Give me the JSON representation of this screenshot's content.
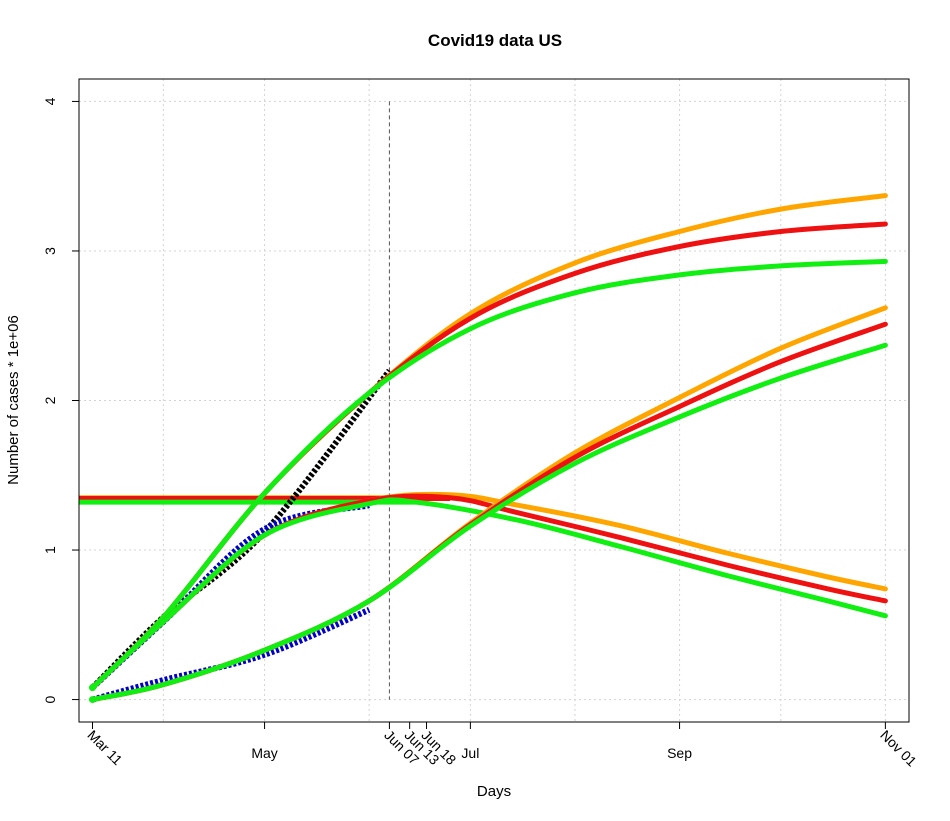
{
  "chart_data": {
    "type": "line",
    "title": "Covid19 data US",
    "xlabel": "Days",
    "ylabel": "Number of cases * 1e+06",
    "x_axis": "date",
    "xlim": [
      "2020-03-07",
      "2020-11-08"
    ],
    "ylim": [
      -0.15,
      4.15
    ],
    "grid": true,
    "x_ticks": [
      {
        "date": "2020-03-11",
        "label": "Mar 11",
        "rotated": true
      },
      {
        "date": "2020-05-01",
        "label": "May",
        "rotated": false
      },
      {
        "date": "2020-06-07",
        "label": "Jun 07",
        "rotated": true
      },
      {
        "date": "2020-06-13",
        "label": "Jun 13",
        "rotated": true
      },
      {
        "date": "2020-06-18",
        "label": "Jun 18",
        "rotated": true
      },
      {
        "date": "2020-07-01",
        "label": "Jul",
        "rotated": false
      },
      {
        "date": "2020-09-01",
        "label": "Sep",
        "rotated": false
      },
      {
        "date": "2020-11-01",
        "label": "Nov 01",
        "rotated": true
      }
    ],
    "y_ticks": [
      0,
      1,
      2,
      3,
      4
    ],
    "y_tick_labels": [
      "0",
      "1",
      "2",
      "3",
      "4"
    ],
    "vline": {
      "date": "2020-06-07",
      "y_top": 4
    },
    "observed": [
      {
        "color": "#000000",
        "points": [
          [
            "2020-03-11",
            0.08
          ],
          [
            "2020-04-01",
            0.55
          ],
          [
            "2020-05-01",
            1.12
          ],
          [
            "2020-06-07",
            2.2
          ]
        ]
      },
      {
        "color": "#0000cc",
        "points": [
          [
            "2020-03-11",
            0.08
          ],
          [
            "2020-04-01",
            0.52
          ],
          [
            "2020-05-01",
            1.14
          ],
          [
            "2020-06-01",
            1.3
          ]
        ]
      },
      {
        "color": "#0000cc",
        "points": [
          [
            "2020-03-11",
            0.0
          ],
          [
            "2020-04-01",
            0.13
          ],
          [
            "2020-05-01",
            0.3
          ],
          [
            "2020-06-01",
            0.6
          ]
        ]
      }
    ],
    "series": [
      {
        "color": "#ffa500",
        "values": [
          [
            "2020-03-11",
            0.08
          ],
          [
            "2020-04-01",
            0.55
          ],
          [
            "2020-05-01",
            1.38
          ],
          [
            "2020-06-01",
            2.05
          ],
          [
            "2020-07-01",
            2.58
          ],
          [
            "2020-08-01",
            2.92
          ],
          [
            "2020-09-01",
            3.13
          ],
          [
            "2020-10-01",
            3.28
          ],
          [
            "2020-11-01",
            3.37
          ]
        ]
      },
      {
        "color": "#ee1111",
        "values": [
          [
            "2020-03-11",
            0.08
          ],
          [
            "2020-04-01",
            0.55
          ],
          [
            "2020-05-01",
            1.38
          ],
          [
            "2020-06-01",
            2.05
          ],
          [
            "2020-07-01",
            2.55
          ],
          [
            "2020-08-01",
            2.85
          ],
          [
            "2020-09-01",
            3.03
          ],
          [
            "2020-10-01",
            3.13
          ],
          [
            "2020-11-01",
            3.18
          ]
        ]
      },
      {
        "color": "#11ee11",
        "values": [
          [
            "2020-03-11",
            0.08
          ],
          [
            "2020-04-01",
            0.55
          ],
          [
            "2020-05-01",
            1.38
          ],
          [
            "2020-06-01",
            2.05
          ],
          [
            "2020-07-01",
            2.48
          ],
          [
            "2020-08-01",
            2.72
          ],
          [
            "2020-09-01",
            2.84
          ],
          [
            "2020-10-01",
            2.9
          ],
          [
            "2020-11-01",
            2.93
          ]
        ]
      },
      {
        "color": "#ffa500",
        "values": [
          [
            "2020-03-11",
            0.08
          ],
          [
            "2020-04-01",
            0.52
          ],
          [
            "2020-05-01",
            1.1
          ],
          [
            "2020-06-01",
            1.33
          ],
          [
            "2020-06-25",
            1.37
          ],
          [
            "2020-07-15",
            1.3
          ],
          [
            "2020-08-15",
            1.16
          ],
          [
            "2020-09-15",
            0.98
          ],
          [
            "2020-10-15",
            0.82
          ],
          [
            "2020-11-01",
            0.74
          ]
        ]
      },
      {
        "color": "#ee1111",
        "values": [
          [
            "2020-03-11",
            0.08
          ],
          [
            "2020-04-01",
            0.52
          ],
          [
            "2020-05-01",
            1.1
          ],
          [
            "2020-06-01",
            1.33
          ],
          [
            "2020-06-25",
            1.35
          ],
          [
            "2020-07-15",
            1.25
          ],
          [
            "2020-08-15",
            1.08
          ],
          [
            "2020-09-15",
            0.9
          ],
          [
            "2020-10-15",
            0.74
          ],
          [
            "2020-11-01",
            0.66
          ]
        ]
      },
      {
        "color": "#11ee11",
        "values": [
          [
            "2020-03-11",
            0.08
          ],
          [
            "2020-04-01",
            0.52
          ],
          [
            "2020-05-01",
            1.1
          ],
          [
            "2020-06-01",
            1.31
          ],
          [
            "2020-06-15",
            1.32
          ],
          [
            "2020-07-15",
            1.2
          ],
          [
            "2020-08-15",
            1.02
          ],
          [
            "2020-09-15",
            0.83
          ],
          [
            "2020-10-15",
            0.66
          ],
          [
            "2020-11-01",
            0.56
          ]
        ]
      },
      {
        "color": "#ffa500",
        "values": [
          [
            "2020-03-11",
            0.0
          ],
          [
            "2020-04-01",
            0.1
          ],
          [
            "2020-05-01",
            0.33
          ],
          [
            "2020-06-01",
            0.66
          ],
          [
            "2020-07-01",
            1.18
          ],
          [
            "2020-08-01",
            1.65
          ],
          [
            "2020-09-01",
            2.02
          ],
          [
            "2020-10-01",
            2.35
          ],
          [
            "2020-11-01",
            2.62
          ]
        ]
      },
      {
        "color": "#ee1111",
        "values": [
          [
            "2020-03-11",
            0.0
          ],
          [
            "2020-04-01",
            0.1
          ],
          [
            "2020-05-01",
            0.33
          ],
          [
            "2020-06-01",
            0.66
          ],
          [
            "2020-07-01",
            1.17
          ],
          [
            "2020-08-01",
            1.62
          ],
          [
            "2020-09-01",
            1.96
          ],
          [
            "2020-10-01",
            2.26
          ],
          [
            "2020-11-01",
            2.51
          ]
        ]
      },
      {
        "color": "#11ee11",
        "values": [
          [
            "2020-03-11",
            0.0
          ],
          [
            "2020-04-01",
            0.1
          ],
          [
            "2020-05-01",
            0.33
          ],
          [
            "2020-06-01",
            0.66
          ],
          [
            "2020-07-01",
            1.16
          ],
          [
            "2020-08-01",
            1.58
          ],
          [
            "2020-09-01",
            1.89
          ],
          [
            "2020-10-01",
            2.15
          ],
          [
            "2020-11-01",
            2.37
          ]
        ]
      },
      {
        "color": "#ffa500",
        "values": [
          [
            "2020-03-07",
            1.35
          ],
          [
            "2020-11-08",
            1.35
          ]
        ],
        "end_date": "2020-06-25"
      },
      {
        "color": "#ee1111",
        "values": [
          [
            "2020-03-07",
            1.345
          ],
          [
            "2020-11-08",
            1.345
          ]
        ],
        "end_date": "2020-06-25"
      },
      {
        "color": "#11ee11",
        "values": [
          [
            "2020-03-07",
            1.32
          ],
          [
            "2020-11-08",
            1.32
          ]
        ],
        "end_date": "2020-06-15"
      }
    ]
  }
}
